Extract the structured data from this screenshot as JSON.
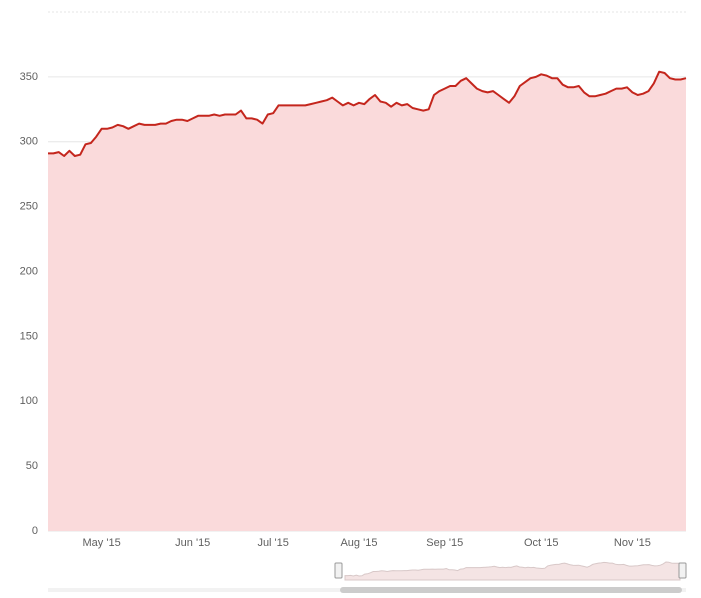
{
  "chart_data": {
    "type": "area",
    "categories": [
      null,
      null,
      null,
      null,
      null,
      null,
      null,
      null,
      null,
      null,
      "May '15",
      null,
      null,
      null,
      null,
      null,
      null,
      null,
      null,
      null,
      null,
      null,
      null,
      null,
      null,
      null,
      null,
      "Jun '15",
      null,
      null,
      null,
      null,
      null,
      null,
      null,
      null,
      null,
      null,
      null,
      null,
      null,
      null,
      "Jul '15",
      null,
      null,
      null,
      null,
      null,
      null,
      null,
      null,
      null,
      null,
      null,
      null,
      null,
      null,
      null,
      "Aug '15",
      null,
      null,
      null,
      null,
      null,
      null,
      null,
      null,
      null,
      null,
      null,
      null,
      null,
      null,
      null,
      "Sep '15",
      null,
      null,
      null,
      null,
      null,
      null,
      null,
      null,
      null,
      null,
      null,
      null,
      null,
      null,
      null,
      null,
      null,
      "Oct '15",
      null,
      null,
      null,
      null,
      null,
      null,
      null,
      null,
      null,
      null,
      null,
      null,
      null,
      null,
      null,
      null,
      "Nov '15",
      null,
      null,
      null,
      null,
      null,
      null,
      null,
      null,
      null,
      null
    ],
    "series": [
      {
        "color": "#c4261d",
        "fill": "#fadadb",
        "values": [
          291,
          291,
          292,
          289,
          293,
          289,
          290,
          298,
          299,
          304,
          310,
          310,
          311,
          313,
          312,
          310,
          312,
          314,
          313,
          313,
          313,
          314,
          314,
          316,
          317,
          317,
          316,
          318,
          320,
          320,
          320,
          321,
          320,
          321,
          321,
          321,
          324,
          318,
          318,
          317,
          314,
          321,
          322,
          328,
          328,
          328,
          328,
          328,
          328,
          329,
          330,
          331,
          332,
          334,
          331,
          328,
          330,
          328,
          330,
          329,
          333,
          336,
          331,
          330,
          327,
          330,
          328,
          329,
          326,
          325,
          324,
          325,
          336,
          339,
          341,
          343,
          343,
          347,
          349,
          345,
          341,
          339,
          338,
          339,
          336,
          333,
          330,
          335,
          343,
          346,
          349,
          350,
          352,
          351,
          349,
          349,
          344,
          342,
          342,
          343,
          338,
          335,
          335,
          336,
          337,
          339,
          341,
          341,
          342,
          338,
          336,
          337,
          339,
          345,
          354,
          353,
          349,
          348,
          348,
          349
        ]
      }
    ],
    "ylim": [
      0,
      400
    ],
    "yticks": [
      0,
      50,
      100,
      150,
      200,
      250,
      300,
      350
    ],
    "grid": true
  }
}
